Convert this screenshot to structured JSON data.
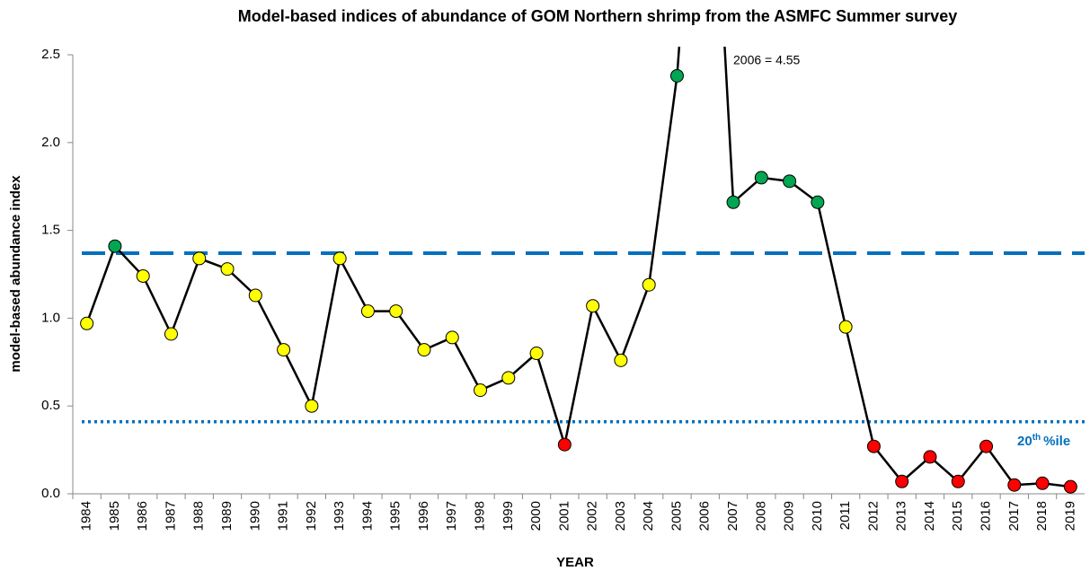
{
  "chart_data": {
    "type": "line",
    "title": "Model-based indices of abundance  of GOM Northern shrimp from the ASMFC Summer survey",
    "x_label": "YEAR",
    "y_label": "model-based abundance index",
    "categories": [
      "1984",
      "1985",
      "1986",
      "1987",
      "1988",
      "1989",
      "1990",
      "1991",
      "1992",
      "1993",
      "1994",
      "1995",
      "1996",
      "1997",
      "1998",
      "1999",
      "2000",
      "2001",
      "2002",
      "2003",
      "2004",
      "2005",
      "2006",
      "2007",
      "2008",
      "2009",
      "2010",
      "2011",
      "2012",
      "2013",
      "2014",
      "2015",
      "2016",
      "2017",
      "2018",
      "2019"
    ],
    "values": [
      0.97,
      1.41,
      1.24,
      0.91,
      1.34,
      1.28,
      1.13,
      0.82,
      0.5,
      1.34,
      1.04,
      1.04,
      0.82,
      0.89,
      0.59,
      0.66,
      0.8,
      0.28,
      1.07,
      0.76,
      1.19,
      2.38,
      4.55,
      1.66,
      1.8,
      1.78,
      1.66,
      0.95,
      0.27,
      0.07,
      0.21,
      0.07,
      0.27,
      0.05,
      0.06,
      0.04
    ],
    "point_colors": [
      "#ffff00",
      "#00a651",
      "#ffff00",
      "#ffff00",
      "#ffff00",
      "#ffff00",
      "#ffff00",
      "#ffff00",
      "#ffff00",
      "#ffff00",
      "#ffff00",
      "#ffff00",
      "#ffff00",
      "#ffff00",
      "#ffff00",
      "#ffff00",
      "#ffff00",
      "#ff0000",
      "#ffff00",
      "#ffff00",
      "#ffff00",
      "#00a651",
      null,
      "#00a651",
      "#00a651",
      "#00a651",
      "#00a651",
      "#ffff00",
      "#ff0000",
      "#ff0000",
      "#ff0000",
      "#ff0000",
      "#ff0000",
      "#ff0000",
      "#ff0000",
      "#ff0000"
    ],
    "line_color": "#000000",
    "ylim": [
      0,
      2.5
    ],
    "yticks": [
      {
        "value": 0,
        "label": "0.0"
      },
      0.5,
      {
        "value": 1,
        "label": "1.0"
      },
      1.5,
      {
        "value": 2,
        "label": "2.0"
      },
      2.5
    ],
    "reference_lines": [
      {
        "value": 1.37,
        "style": "dashed",
        "color": "#0070c0"
      },
      {
        "value": 0.41,
        "style": "dotted",
        "color": "#0070c0"
      }
    ],
    "annotation": "2006 = 4.55",
    "percentile_label": {
      "base": "20",
      "sup": "th",
      "tail": "%ile"
    }
  }
}
